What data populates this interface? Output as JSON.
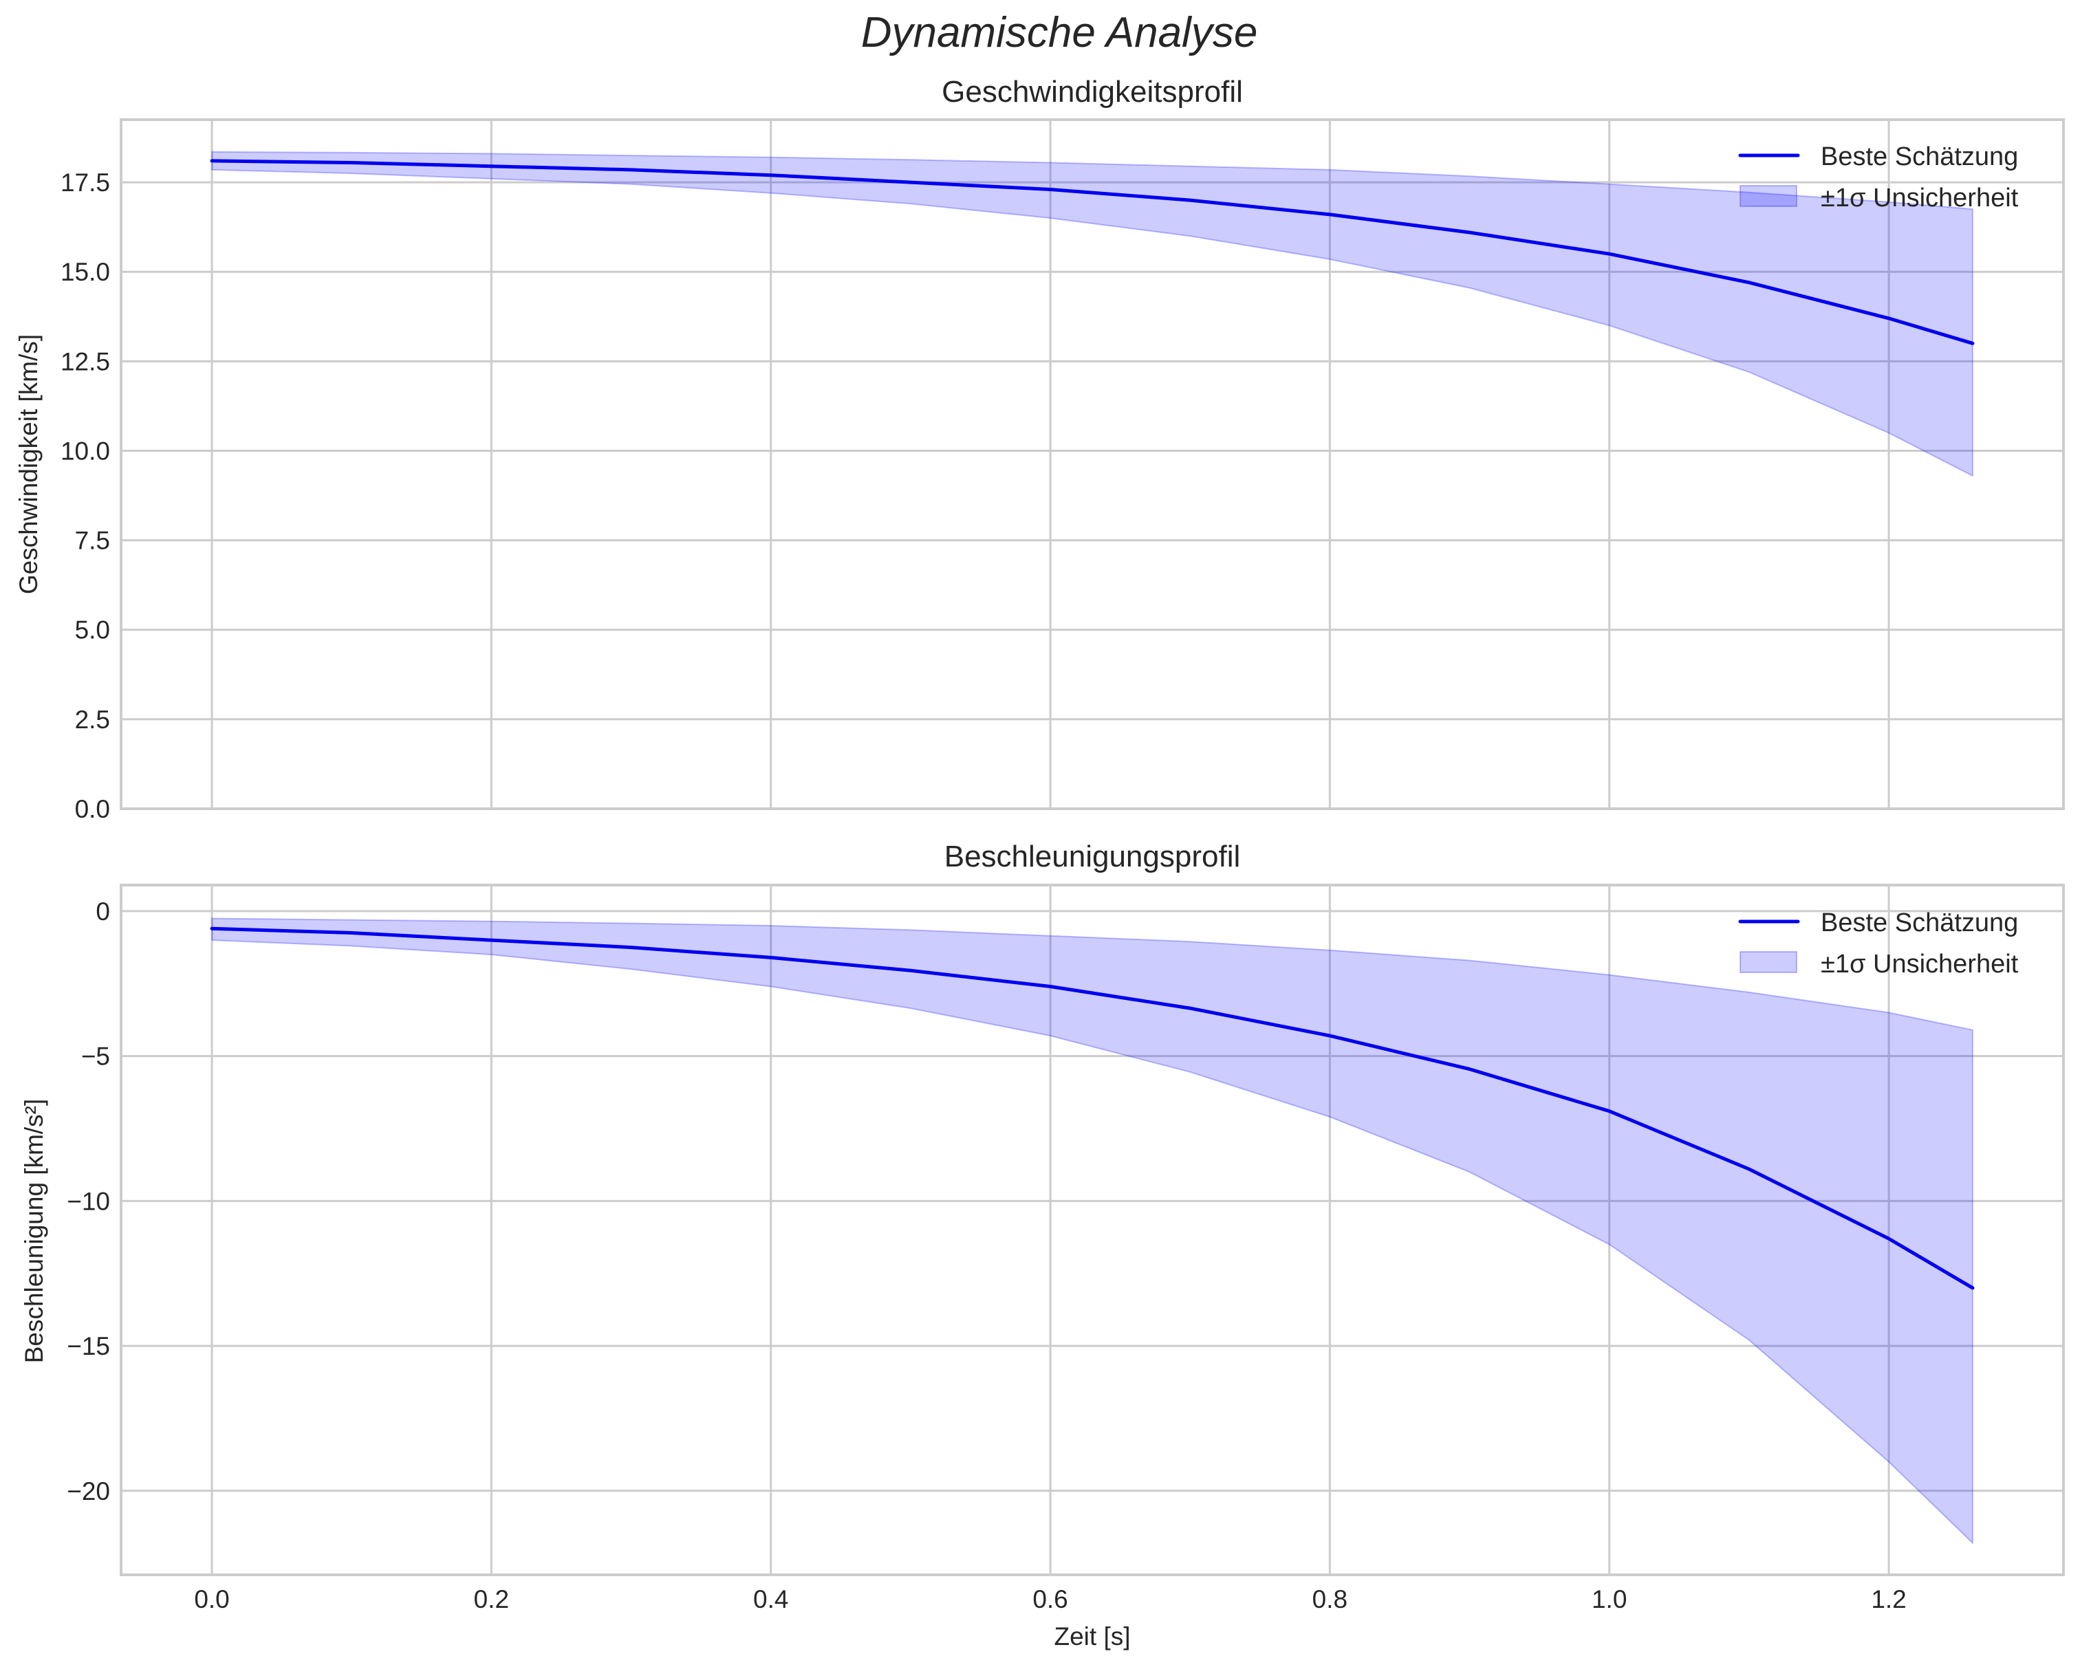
{
  "figure": {
    "suptitle": "Dynamische Analyse",
    "xlabel": "Zeit [s]",
    "colors": {
      "line": "#0000ee",
      "band_fill": "#0000ff",
      "band_alpha": 0.2,
      "grid": "#cccccc",
      "frame": "#cccccc",
      "text": "#262626"
    }
  },
  "legend": {
    "line_label": "Beste Schätzung",
    "band_label": "±1σ Unsicherheit"
  },
  "chart_data": [
    {
      "type": "line",
      "title": "Geschwindigkeitsprofil",
      "xlabel": "",
      "ylabel": "Geschwindigkeit [km/s]",
      "xlim": [
        -0.065,
        1.325
      ],
      "ylim": [
        0,
        19.25
      ],
      "grid": true,
      "legend_position": "upper right",
      "xticks": [
        "0.0",
        "0.2",
        "0.4",
        "0.6",
        "0.8",
        "1.0",
        "1.2"
      ],
      "yticks": [
        "0.0",
        "2.5",
        "5.0",
        "7.5",
        "10.0",
        "12.5",
        "15.0",
        "17.5"
      ],
      "ytick_values": [
        0,
        2.5,
        5,
        7.5,
        10,
        12.5,
        15,
        17.5
      ],
      "x": [
        0.0,
        0.1,
        0.2,
        0.3,
        0.4,
        0.5,
        0.6,
        0.7,
        0.8,
        0.9,
        1.0,
        1.1,
        1.2,
        1.26
      ],
      "series": [
        {
          "name": "Beste Schätzung",
          "values": [
            18.1,
            18.05,
            17.95,
            17.85,
            17.7,
            17.5,
            17.3,
            17.0,
            16.6,
            16.1,
            15.5,
            14.7,
            13.7,
            13.0
          ]
        },
        {
          "name": "±1σ Unsicherheit (obere Grenze)",
          "values": [
            18.35,
            18.33,
            18.3,
            18.25,
            18.2,
            18.13,
            18.05,
            17.95,
            17.85,
            17.67,
            17.45,
            17.22,
            16.95,
            16.75
          ]
        },
        {
          "name": "±1σ Unsicherheit (untere Grenze)",
          "values": [
            17.85,
            17.75,
            17.6,
            17.45,
            17.2,
            16.9,
            16.5,
            16.0,
            15.35,
            14.55,
            13.5,
            12.2,
            10.5,
            9.3
          ]
        }
      ]
    },
    {
      "type": "line",
      "title": "Beschleunigungsprofil",
      "xlabel": "Zeit [s]",
      "ylabel": "Beschleunigung [km/s²]",
      "xlim": [
        -0.065,
        1.325
      ],
      "ylim": [
        -22.9,
        0.9
      ],
      "grid": true,
      "legend_position": "upper right",
      "xticks": [
        "0.0",
        "0.2",
        "0.4",
        "0.6",
        "0.8",
        "1.0",
        "1.2"
      ],
      "yticks": [
        "0",
        "−5",
        "−10",
        "−15",
        "−20"
      ],
      "ytick_values": [
        0,
        -5,
        -10,
        -15,
        -20
      ],
      "x": [
        0.0,
        0.1,
        0.2,
        0.3,
        0.4,
        0.5,
        0.6,
        0.7,
        0.8,
        0.9,
        1.0,
        1.1,
        1.2,
        1.26
      ],
      "series": [
        {
          "name": "Beste Schätzung",
          "values": [
            -0.6,
            -0.75,
            -1.0,
            -1.25,
            -1.6,
            -2.05,
            -2.6,
            -3.35,
            -4.3,
            -5.45,
            -6.9,
            -8.9,
            -11.3,
            -13.0
          ]
        },
        {
          "name": "±1σ Unsicherheit (obere Grenze)",
          "values": [
            -0.25,
            -0.3,
            -0.35,
            -0.42,
            -0.5,
            -0.65,
            -0.85,
            -1.05,
            -1.35,
            -1.7,
            -2.2,
            -2.8,
            -3.5,
            -4.1
          ]
        },
        {
          "name": "±1σ Unsicherheit (untere Grenze)",
          "values": [
            -1.0,
            -1.2,
            -1.5,
            -2.0,
            -2.6,
            -3.35,
            -4.3,
            -5.55,
            -7.1,
            -9.0,
            -11.5,
            -14.8,
            -19.0,
            -21.8
          ]
        }
      ]
    }
  ]
}
